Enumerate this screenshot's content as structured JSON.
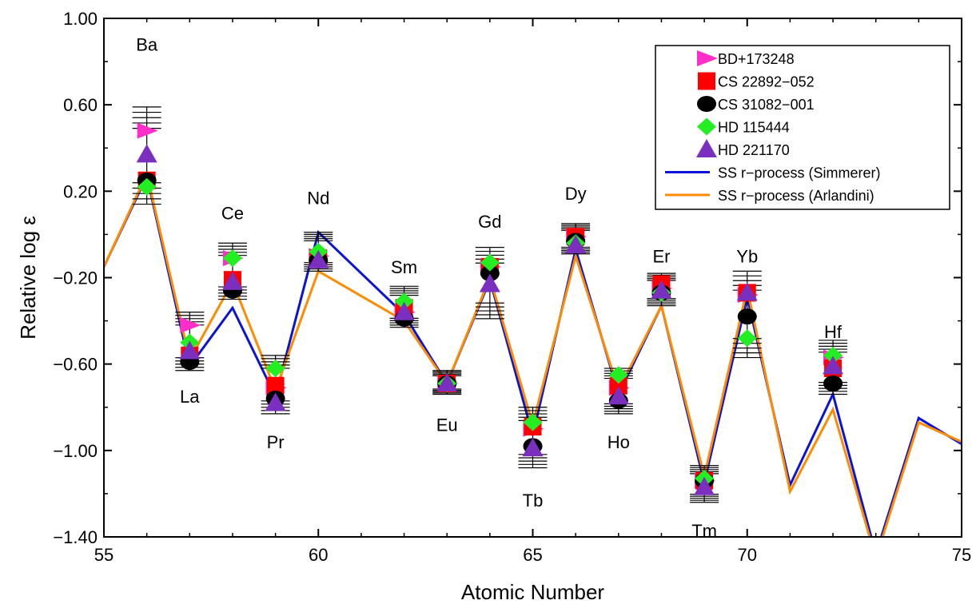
{
  "chart_data": {
    "type": "scatter",
    "xlabel": "Atomic Number",
    "ylabel": "Relative log ε",
    "xlim": [
      55,
      75
    ],
    "ylim": [
      -1.4,
      1.0
    ],
    "x_ticks": [
      "55",
      "60",
      "65",
      "70",
      "75"
    ],
    "y_ticks": [
      "1.00",
      "0.60",
      "0.20",
      "−0.20",
      "−0.60",
      "−1.00",
      "−1.40"
    ],
    "element_labels": [
      {
        "text": "Ba",
        "x": 56,
        "y": 0.88
      },
      {
        "text": "La",
        "x": 57,
        "y": -0.75
      },
      {
        "text": "Ce",
        "x": 58,
        "y": 0.1
      },
      {
        "text": "Pr",
        "x": 59,
        "y": -0.96
      },
      {
        "text": "Nd",
        "x": 60,
        "y": 0.17
      },
      {
        "text": "Sm",
        "x": 62,
        "y": -0.15
      },
      {
        "text": "Eu",
        "x": 63,
        "y": -0.88
      },
      {
        "text": "Gd",
        "x": 64,
        "y": 0.06
      },
      {
        "text": "Tb",
        "x": 65,
        "y": -1.23
      },
      {
        "text": "Dy",
        "x": 66,
        "y": 0.19
      },
      {
        "text": "Ho",
        "x": 67,
        "y": -0.96
      },
      {
        "text": "Er",
        "x": 68,
        "y": -0.1
      },
      {
        "text": "Tm",
        "x": 69,
        "y": -1.37
      },
      {
        "text": "Yb",
        "x": 70,
        "y": -0.1
      },
      {
        "text": "Hf",
        "x": 72,
        "y": -0.45
      }
    ],
    "series": [
      {
        "name": "BD+173248",
        "marker": "triangle-right",
        "color": "#ff2ec9",
        "points": [
          [
            56,
            0.48
          ],
          [
            57,
            -0.42
          ],
          [
            58,
            -0.11
          ],
          [
            59,
            -0.71
          ],
          [
            60,
            -0.1
          ],
          [
            62,
            -0.36
          ],
          [
            63,
            -0.69
          ],
          [
            64,
            -0.15
          ],
          [
            65,
            -0.9
          ],
          [
            66,
            -0.01
          ],
          [
            67,
            -0.71
          ],
          [
            68,
            -0.25
          ],
          [
            69,
            -1.14
          ],
          [
            70,
            -0.28
          ],
          [
            72,
            -0.57
          ]
        ]
      },
      {
        "name": "CS 22892−052",
        "marker": "square",
        "color": "#ff0000",
        "points": [
          [
            56,
            0.25
          ],
          [
            57,
            -0.56
          ],
          [
            58,
            -0.21
          ],
          [
            59,
            -0.7
          ],
          [
            60,
            -0.11
          ],
          [
            62,
            -0.34
          ],
          [
            63,
            -0.69
          ],
          [
            64,
            -0.15
          ],
          [
            65,
            -0.89
          ],
          [
            66,
            -0.01
          ],
          [
            67,
            -0.7
          ],
          [
            68,
            -0.23
          ],
          [
            69,
            -1.14
          ],
          [
            70,
            -0.27
          ],
          [
            72,
            -0.62
          ]
        ]
      },
      {
        "name": "CS 31082−001",
        "marker": "circle",
        "color": "#000000",
        "points": [
          [
            56,
            0.25
          ],
          [
            57,
            -0.59
          ],
          [
            58,
            -0.26
          ],
          [
            59,
            -0.76
          ],
          [
            60,
            -0.12
          ],
          [
            62,
            -0.39
          ],
          [
            63,
            -0.69
          ],
          [
            64,
            -0.18
          ],
          [
            65,
            -0.98
          ],
          [
            66,
            -0.03
          ],
          [
            67,
            -0.77
          ],
          [
            68,
            -0.27
          ],
          [
            69,
            -1.14
          ],
          [
            70,
            -0.38
          ],
          [
            72,
            -0.69
          ]
        ]
      },
      {
        "name": "HD 115444",
        "marker": "diamond",
        "color": "#22ee22",
        "points": [
          [
            56,
            0.22
          ],
          [
            57,
            -0.5
          ],
          [
            58,
            -0.11
          ],
          [
            59,
            -0.62
          ],
          [
            60,
            -0.08
          ],
          [
            62,
            -0.31
          ],
          [
            63,
            -0.69
          ],
          [
            64,
            -0.13
          ],
          [
            65,
            -0.87
          ],
          [
            66,
            -0.04
          ],
          [
            67,
            -0.65
          ],
          [
            68,
            -0.27
          ],
          [
            69,
            -1.13
          ],
          [
            70,
            -0.48
          ],
          [
            72,
            -0.56
          ]
        ]
      },
      {
        "name": "HD 221170",
        "marker": "triangle-up",
        "color": "#7b2fbf",
        "points": [
          [
            56,
            0.37
          ],
          [
            57,
            -0.54
          ],
          [
            58,
            -0.22
          ],
          [
            59,
            -0.78
          ],
          [
            60,
            -0.12
          ],
          [
            62,
            -0.36
          ],
          [
            63,
            -0.69
          ],
          [
            64,
            -0.23
          ],
          [
            65,
            -0.99
          ],
          [
            66,
            -0.05
          ],
          [
            67,
            -0.75
          ],
          [
            68,
            -0.26
          ],
          [
            69,
            -1.17
          ],
          [
            70,
            -0.27
          ],
          [
            72,
            -0.61
          ]
        ]
      }
    ],
    "error_bars": [
      {
        "x": 56,
        "low": 0.14,
        "high": 0.59
      },
      {
        "x": 57,
        "low": -0.63,
        "high": -0.36
      },
      {
        "x": 58,
        "low": -0.3,
        "high": -0.04
      },
      {
        "x": 59,
        "low": -0.83,
        "high": -0.56
      },
      {
        "x": 60,
        "low": -0.17,
        "high": 0.01
      },
      {
        "x": 62,
        "low": -0.43,
        "high": -0.24
      },
      {
        "x": 63,
        "low": -0.74,
        "high": -0.63
      },
      {
        "x": 64,
        "low": -0.39,
        "high": -0.06
      },
      {
        "x": 65,
        "low": -1.08,
        "high": -0.8
      },
      {
        "x": 66,
        "low": -0.09,
        "high": 0.05
      },
      {
        "x": 67,
        "low": -0.83,
        "high": -0.62
      },
      {
        "x": 68,
        "low": -0.33,
        "high": -0.18
      },
      {
        "x": 69,
        "low": -1.24,
        "high": -1.07
      },
      {
        "x": 70,
        "low": -0.57,
        "high": -0.17
      },
      {
        "x": 72,
        "low": -0.74,
        "high": -0.49
      }
    ],
    "lines": [
      {
        "name": "SS r−process (Simmerer)",
        "color": "#0a14d8",
        "points": [
          [
            55,
            -0.15
          ],
          [
            56,
            0.27
          ],
          [
            57,
            -0.61
          ],
          [
            58,
            -0.34
          ],
          [
            59,
            -0.75
          ],
          [
            60,
            0.01
          ],
          [
            62,
            -0.37
          ],
          [
            63,
            -0.69
          ],
          [
            64,
            -0.21
          ],
          [
            65,
            -0.93
          ],
          [
            66,
            -0.07
          ],
          [
            67,
            -0.74
          ],
          [
            68,
            -0.33
          ],
          [
            69,
            -1.15
          ],
          [
            70,
            -0.29
          ],
          [
            71,
            -1.16
          ],
          [
            72,
            -0.74
          ],
          [
            73,
            -1.48
          ],
          [
            74,
            -0.85
          ],
          [
            75,
            -0.97
          ]
        ]
      },
      {
        "name": "SS r−process (Arlandini)",
        "color": "#ff8c00",
        "points": [
          [
            55,
            -0.15
          ],
          [
            56,
            0.28
          ],
          [
            57,
            -0.58
          ],
          [
            58,
            -0.22
          ],
          [
            59,
            -0.72
          ],
          [
            60,
            -0.17
          ],
          [
            62,
            -0.4
          ],
          [
            63,
            -0.69
          ],
          [
            64,
            -0.2
          ],
          [
            65,
            -0.88
          ],
          [
            66,
            -0.1
          ],
          [
            67,
            -0.72
          ],
          [
            68,
            -0.33
          ],
          [
            69,
            -1.12
          ],
          [
            70,
            -0.25
          ],
          [
            71,
            -1.19
          ],
          [
            72,
            -0.81
          ],
          [
            73,
            -1.5
          ],
          [
            74,
            -0.87
          ],
          [
            75,
            -0.96
          ]
        ]
      }
    ],
    "legend_position": "top-right",
    "grid": false
  }
}
